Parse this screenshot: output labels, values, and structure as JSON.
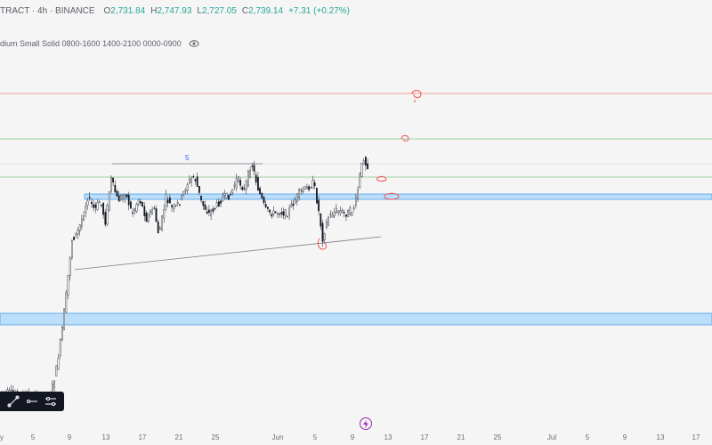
{
  "legend": {
    "symbol_text": "TRACT · 4h · BINANCE",
    "open_key": "O",
    "open": "2,731.84",
    "high_key": "H",
    "high": "2,747.93",
    "low_key": "L",
    "low": "2,727.05",
    "close_key": "C",
    "close": "2,739.14",
    "change": "+7.31 (+0.27%)",
    "up_color": "#26a69a"
  },
  "indicator": {
    "label": "dium Small Solid 0800-1600 1400-2100 0000-0900",
    "visibility_icon": "eye-icon"
  },
  "chart_data": {
    "type": "candlestick",
    "annotation_text": "5",
    "colors": {
      "red_level": "#ef5350",
      "green_level": "#66bb6a",
      "zone": "#90caf9",
      "zone_border": "#1e88e5",
      "candle": "#131722"
    }
  },
  "drawing_toolbar": {
    "icons": [
      "trend-line-icon",
      "horizontal-ray-icon",
      "settings-lines-icon"
    ]
  },
  "time_axis": {
    "labels": [
      "y",
      "5",
      "9",
      "13",
      "17",
      "21",
      "25",
      "Jun",
      "5",
      "9",
      "13",
      "17",
      "21",
      "25",
      "Jul",
      "5",
      "9",
      "13",
      "17"
    ]
  },
  "replay_icon": "lightning-icon"
}
